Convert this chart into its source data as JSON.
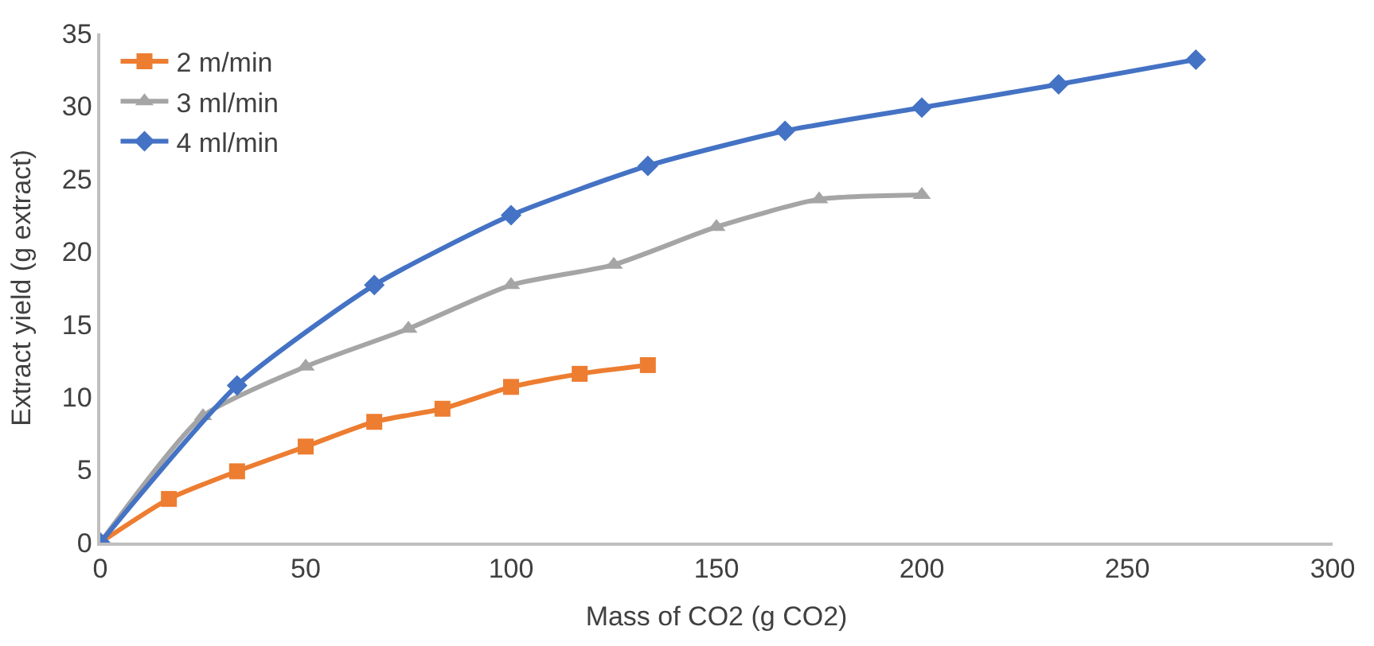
{
  "chart_data": {
    "type": "line",
    "xlabel": "Mass of CO2 (g CO2)",
    "ylabel": "Extract yield (g extract)",
    "xlim": [
      0,
      300
    ],
    "xticks": [
      0,
      50,
      100,
      150,
      200,
      250,
      300
    ],
    "ylim": [
      0,
      35
    ],
    "yticks": [
      0,
      5,
      10,
      15,
      20,
      25,
      30,
      35
    ],
    "grid": false,
    "legend": "top left",
    "series": [
      {
        "name": "2 m/min",
        "color": "#ed7d31",
        "marker": "square",
        "x": [
          0,
          16.7,
          33.3,
          50,
          66.7,
          83.3,
          100,
          116.7,
          133.3
        ],
        "values": [
          0,
          3.0,
          4.9,
          6.6,
          8.3,
          9.2,
          10.7,
          11.6,
          12.2
        ]
      },
      {
        "name": "3 ml/min",
        "color": "#a5a5a5",
        "marker": "triangle",
        "x": [
          0,
          25,
          50,
          75,
          100,
          125,
          150,
          175,
          200
        ],
        "values": [
          0,
          8.7,
          12.1,
          14.7,
          17.7,
          19.1,
          21.7,
          23.6,
          23.9
        ]
      },
      {
        "name": "4 ml/min",
        "color": "#4472c4",
        "marker": "diamond",
        "x": [
          0,
          33.3,
          66.7,
          100,
          133.3,
          166.7,
          200,
          233.3,
          266.7
        ],
        "values": [
          0,
          10.8,
          17.7,
          22.5,
          25.9,
          28.3,
          29.9,
          31.5,
          33.2
        ]
      }
    ]
  }
}
